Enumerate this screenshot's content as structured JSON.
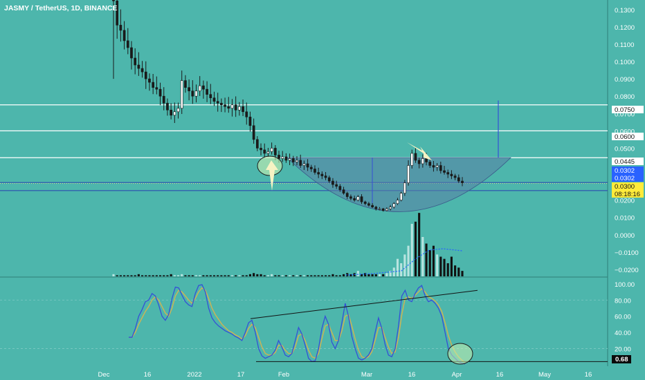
{
  "header": {
    "symbol_title": "JASMY / TetherUS, 1D, BINANCE"
  },
  "colors": {
    "background": "#4db6ac",
    "candle_up": "#ffffff",
    "candle_down": "#1a1a1a",
    "level_line": "#ffffff",
    "support_line": "#2a3fb0",
    "cup_fill": "#5a7fa6",
    "stoch_k": "#3550d6",
    "stoch_d": "#c9b458",
    "arrow": "#f6f3c4",
    "circle_fill": "#c9f0b0",
    "label_dark": "#0b0b0b",
    "label_blue": "#2962ff",
    "label_yellow": "#ffeb3b"
  },
  "chart_data": [
    {
      "type": "candlestick",
      "title": "JASMY / TetherUS, 1D, BINANCE",
      "y_axis_ticks": [
        "0.1300",
        "0.1200",
        "0.1100",
        "0.1000",
        "0.0900",
        "0.0800",
        "0.0700",
        "0.0600",
        "0.0500",
        "0.0400",
        "0.0300",
        "0.0200",
        "0.0100",
        "0.0000",
        "−0.0100",
        "−0.0200"
      ],
      "x_axis_ticks": [
        "Dec",
        "16",
        "2022",
        "17",
        "Feb",
        "Mar",
        "16",
        "Apr",
        "16",
        "May",
        "16"
      ],
      "ylim": [
        -0.024,
        0.1355
      ],
      "levels": [
        0.075,
        0.06,
        0.0445,
        0.0302,
        0.0255
      ],
      "price_labels": [
        {
          "text": "0.0750",
          "style": "dark"
        },
        {
          "text": "0.0600",
          "style": "dark"
        },
        {
          "text": "0.0445",
          "style": "dark"
        },
        {
          "text": "0.0302",
          "style": "blue"
        },
        {
          "text": "0.0302",
          "style": "blue"
        },
        {
          "text": "0.0300",
          "style": "yellow"
        },
        {
          "text": "08:18:16",
          "style": "yellow"
        }
      ],
      "close_series_approx": [
        0.135,
        0.121,
        0.118,
        0.112,
        0.108,
        0.102,
        0.098,
        0.096,
        0.094,
        0.09,
        0.088,
        0.085,
        0.084,
        0.08,
        0.076,
        0.072,
        0.069,
        0.071,
        0.073,
        0.089,
        0.085,
        0.083,
        0.08,
        0.083,
        0.086,
        0.084,
        0.081,
        0.079,
        0.077,
        0.076,
        0.075,
        0.074,
        0.073,
        0.075,
        0.072,
        0.074,
        0.071,
        0.068,
        0.063,
        0.055,
        0.05,
        0.049,
        0.047,
        0.048,
        0.05,
        0.046,
        0.044,
        0.045,
        0.043,
        0.044,
        0.042,
        0.043,
        0.04,
        0.041,
        0.039,
        0.038,
        0.036,
        0.035,
        0.034,
        0.033,
        0.031,
        0.029,
        0.028,
        0.026,
        0.024,
        0.022,
        0.021,
        0.02,
        0.022,
        0.019,
        0.018,
        0.017,
        0.016,
        0.015,
        0.015,
        0.014,
        0.015,
        0.016,
        0.018,
        0.02,
        0.024,
        0.03,
        0.04,
        0.047,
        0.043,
        0.041,
        0.044,
        0.042,
        0.04,
        0.039,
        0.04,
        0.037,
        0.036,
        0.035,
        0.034,
        0.033,
        0.031,
        0.03
      ],
      "volume_approx": [
        0.02,
        0.01,
        0.01,
        0.01,
        0.01,
        0.01,
        0.01,
        0.02,
        0.01,
        0.01,
        0.01,
        0.01,
        0.01,
        0.01,
        0.01,
        0.01,
        0.02,
        0.01,
        0.01,
        0.02,
        0.01,
        0.01,
        0.01,
        0.01,
        0.01,
        0.01,
        0.01,
        0.01,
        0.01,
        0.01,
        0.01,
        0.01,
        0.01,
        0.01,
        0.01,
        0.01,
        0.01,
        0.01,
        0.02,
        0.03,
        0.02,
        0.02,
        0.01,
        0.01,
        0.02,
        0.01,
        0.01,
        0.01,
        0.01,
        0.01,
        0.01,
        0.01,
        0.01,
        0.01,
        0.01,
        0.01,
        0.01,
        0.01,
        0.01,
        0.01,
        0.01,
        0.02,
        0.01,
        0.01,
        0.02,
        0.03,
        0.02,
        0.03,
        0.05,
        0.02,
        0.03,
        0.02,
        0.02,
        0.02,
        0.02,
        0.02,
        0.03,
        0.05,
        0.08,
        0.16,
        0.12,
        0.2,
        0.28,
        0.48,
        0.5,
        0.58,
        0.36,
        0.3,
        0.24,
        0.28,
        0.2,
        0.18,
        0.16,
        0.12,
        0.18,
        0.1,
        0.08,
        0.05
      ],
      "volume_ma_approx": [
        0.0,
        0.0,
        0.0,
        0.0,
        0.0,
        0.0,
        0.0,
        0.0,
        0.0,
        0.0,
        0.0,
        0.0,
        0.0,
        0.0,
        0.0,
        0.0,
        0.0,
        0.0,
        0.0,
        0.0,
        0.0,
        0.0,
        0.0,
        0.0,
        0.0,
        0.0,
        0.0,
        0.0,
        0.0,
        0.0,
        0.0,
        0.0,
        0.0,
        0.0,
        0.0,
        0.0,
        0.0,
        0.0,
        0.0,
        0.0,
        0.0,
        0.0,
        0.0,
        0.0,
        0.0,
        0.0,
        0.0,
        0.0,
        0.0,
        0.0,
        0.0,
        0.0,
        0.0,
        0.0,
        0.0,
        0.0,
        0.0,
        0.0,
        0.0,
        0.0,
        0.0,
        0.0,
        0.0,
        0.0,
        0.0,
        0.0,
        0.0,
        0.0,
        0.0,
        0.0,
        0.0,
        0.0,
        0.0,
        0.0,
        0.0,
        0.0,
        0.0,
        0.0,
        0.0,
        0.0,
        0.0,
        0.0,
        0.0,
        0.0,
        0.0,
        0.0,
        0.0,
        0.0,
        0.0,
        0.0,
        0.0,
        0.0,
        0.0,
        0.0,
        0.0,
        0.0,
        0.0,
        0.0
      ],
      "cup": {
        "left_price": 0.0445,
        "bottom_price": 0.0125,
        "right_price": 0.0445
      }
    },
    {
      "type": "line",
      "indicator": "stochastic",
      "y_axis_ticks": [
        "100.00",
        "80.00",
        "60.00",
        "40.00",
        "20.00"
      ],
      "ylim": [
        0,
        105
      ],
      "current_value_label": "0.68",
      "series": [
        {
          "values": [
            34,
            34,
            45,
            60,
            68,
            78,
            80,
            88,
            85,
            74,
            60,
            55,
            62,
            82,
            96,
            95,
            86,
            78,
            74,
            72,
            88,
            98,
            99,
            90,
            70,
            58,
            52,
            48,
            45,
            42,
            40,
            38,
            35,
            33,
            30,
            40,
            52,
            55,
            40,
            20,
            11,
            8,
            10,
            12,
            18,
            30,
            22,
            12,
            10,
            14,
            30,
            46,
            38,
            24,
            8,
            4,
            5,
            20,
            45,
            60,
            50,
            28,
            20,
            30,
            52,
            76,
            60,
            35,
            20,
            8,
            6,
            8,
            12,
            20,
            40,
            58,
            45,
            25,
            12,
            10,
            20,
            48,
            85,
            92,
            80,
            78,
            88,
            95,
            98,
            85,
            78,
            80,
            76,
            70,
            60,
            40,
            20,
            12,
            8,
            4,
            2,
            1
          ]
        },
        {
          "values": [
            34,
            34,
            40,
            50,
            58,
            66,
            72,
            80,
            84,
            80,
            72,
            64,
            60,
            70,
            85,
            92,
            90,
            85,
            80,
            76,
            82,
            90,
            95,
            92,
            82,
            70,
            62,
            56,
            50,
            46,
            42,
            40,
            37,
            35,
            32,
            36,
            45,
            50,
            46,
            34,
            22,
            14,
            12,
            12,
            15,
            24,
            24,
            18,
            14,
            14,
            22,
            36,
            38,
            30,
            18,
            10,
            8,
            14,
            32,
            48,
            50,
            40,
            30,
            30,
            42,
            60,
            62,
            48,
            32,
            18,
            10,
            8,
            10,
            16,
            30,
            46,
            46,
            34,
            22,
            14,
            16,
            34,
            62,
            82,
            84,
            82,
            86,
            90,
            94,
            90,
            84,
            82,
            79,
            74,
            66,
            52,
            36,
            24,
            16,
            10,
            6,
            3
          ]
        }
      ],
      "trendlines": [
        "upper-rising",
        "lower-flat"
      ]
    }
  ]
}
